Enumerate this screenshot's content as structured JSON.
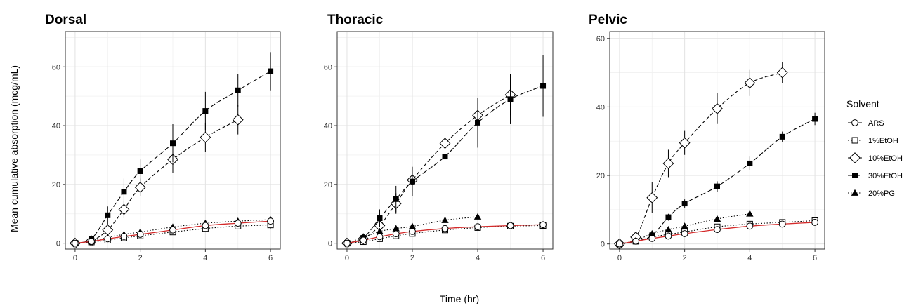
{
  "chart_data": {
    "type": "line",
    "ylabel": "Mean cumulative absorption (mcg/mL)",
    "xlabel": "Time (hr)",
    "grid": true,
    "legend": {
      "title": "Solvent",
      "placement": "right",
      "entries": [
        {
          "name": "ARS",
          "marker": "open-circle",
          "dash": "solid"
        },
        {
          "name": "1%EtOH",
          "marker": "open-square",
          "dash": "dotted"
        },
        {
          "name": "10%EtOH",
          "marker": "open-diamond",
          "dash": "dashed"
        },
        {
          "name": "30%EtOH",
          "marker": "filled-square",
          "dash": "longdash"
        },
        {
          "name": "20%PG",
          "marker": "filled-triangle",
          "dash": "dotted"
        }
      ]
    },
    "panels": [
      {
        "title": "Dorsal",
        "xlim": [
          -0.3,
          6.3
        ],
        "ylim": [
          -2,
          72
        ],
        "xticks": [
          0,
          2,
          4,
          6
        ],
        "yticks": [
          0,
          20,
          40,
          60
        ],
        "series": [
          {
            "name": "ARS",
            "x": [
              0,
              0.5,
              1,
              1.5,
              2,
              3,
              4,
              5,
              6
            ],
            "y": [
              0,
              0.6,
              1.5,
              2.3,
              3.0,
              4.5,
              6.0,
              6.8,
              7.5
            ],
            "err": [
              0,
              0,
              0,
              0,
              0,
              0,
              0,
              0,
              0
            ]
          },
          {
            "name": "1%EtOH",
            "x": [
              0,
              0.5,
              1,
              1.5,
              2,
              3,
              4,
              5,
              6
            ],
            "y": [
              0,
              0.4,
              1.0,
              1.8,
              2.5,
              3.8,
              5.0,
              5.8,
              6.2
            ],
            "err": [
              0.3,
              0.3,
              0.5,
              0.5,
              0.5,
              0.8,
              0.8,
              1.0,
              1.2
            ]
          },
          {
            "name": "10%EtOH",
            "x": [
              0,
              0.5,
              1,
              1.5,
              2,
              3,
              4,
              5
            ],
            "y": [
              0,
              0.8,
              4.5,
              11.5,
              19.0,
              28.5,
              36.0,
              42.0
            ],
            "err": [
              0.3,
              0.5,
              2.0,
              3.0,
              3.0,
              4.5,
              5.0,
              5.0
            ]
          },
          {
            "name": "30%EtOH",
            "x": [
              0,
              0.5,
              1,
              1.5,
              2,
              3,
              4,
              5,
              6
            ],
            "y": [
              0,
              1.5,
              9.5,
              17.5,
              24.5,
              34.0,
              45.0,
              52.0,
              58.5
            ],
            "err": [
              0.3,
              0.8,
              3.0,
              4.5,
              4.0,
              6.5,
              6.5,
              5.5,
              6.5
            ]
          },
          {
            "name": "20%PG",
            "x": [
              0,
              0.5,
              1,
              1.5,
              2,
              3,
              4,
              5,
              6
            ],
            "y": [
              0,
              0.7,
              2.0,
              3.0,
              3.8,
              5.5,
              6.8,
              7.5,
              8.0
            ],
            "err": [
              0.2,
              0.3,
              0.5,
              0.6,
              0.6,
              0.8,
              0.9,
              1.0,
              1.0
            ]
          }
        ]
      },
      {
        "title": "Thoracic",
        "xlim": [
          -0.3,
          6.3
        ],
        "ylim": [
          -2,
          72
        ],
        "xticks": [
          0,
          2,
          4,
          6
        ],
        "yticks": [
          0,
          20,
          40,
          60
        ],
        "series": [
          {
            "name": "ARS",
            "x": [
              0,
              0.5,
              1,
              1.5,
              2,
              3,
              4,
              5,
              6
            ],
            "y": [
              0,
              1.0,
              2.2,
              3.2,
              4.0,
              5.0,
              5.6,
              6.0,
              6.3
            ],
            "err": [
              0,
              0,
              0,
              0,
              0,
              0,
              0,
              0,
              0
            ]
          },
          {
            "name": "1%EtOH",
            "x": [
              0,
              0.5,
              1,
              1.5,
              2,
              3,
              4,
              5,
              6
            ],
            "y": [
              0,
              0.5,
              1.5,
              2.5,
              3.3,
              4.5,
              5.3,
              5.8,
              6.0
            ],
            "err": [
              0.3,
              0.3,
              0.5,
              0.5,
              0.6,
              0.8,
              0.8,
              1.0,
              1.0
            ]
          },
          {
            "name": "10%EtOH",
            "x": [
              0,
              0.5,
              1,
              1.5,
              2,
              3,
              4,
              5
            ],
            "y": [
              0,
              1.5,
              6.0,
              13.5,
              21.5,
              34.0,
              43.5,
              50.5
            ],
            "err": [
              0.3,
              0.8,
              2.5,
              3.5,
              4.0,
              3.0,
              5.0,
              7.0
            ]
          },
          {
            "name": "30%EtOH",
            "x": [
              0,
              0.5,
              1,
              1.5,
              2,
              3,
              4,
              5,
              6
            ],
            "y": [
              0,
              1.8,
              8.5,
              15.0,
              21.0,
              29.5,
              41.0,
              49.0,
              53.5
            ],
            "err": [
              0.3,
              0.8,
              3.0,
              4.5,
              5.0,
              5.5,
              8.5,
              8.5,
              10.5
            ]
          },
          {
            "name": "20%PG",
            "x": [
              0,
              0.5,
              1,
              1.5,
              2,
              3,
              4
            ],
            "y": [
              0,
              2.0,
              4.0,
              5.0,
              5.7,
              7.8,
              9.0
            ],
            "err": [
              0.3,
              0.5,
              0.8,
              0.8,
              0.8,
              0.8,
              0.8
            ]
          }
        ]
      },
      {
        "title": "Pelvic",
        "xlim": [
          -0.3,
          6.3
        ],
        "ylim": [
          -1.5,
          62
        ],
        "xticks": [
          0,
          2,
          4,
          6
        ],
        "yticks": [
          0,
          20,
          40,
          60
        ],
        "series": [
          {
            "name": "ARS",
            "x": [
              0,
              0.5,
              1,
              1.5,
              2,
              3,
              4,
              5,
              6
            ],
            "y": [
              0,
              0.8,
              1.6,
              2.3,
              3.0,
              4.2,
              5.2,
              5.8,
              6.3
            ],
            "err": [
              0,
              0,
              0,
              0,
              0,
              0,
              0,
              0,
              0
            ]
          },
          {
            "name": "1%EtOH",
            "x": [
              0,
              0.5,
              1,
              1.5,
              2,
              3,
              4,
              5,
              6
            ],
            "y": [
              0,
              0.8,
              2.0,
              2.8,
              3.5,
              5.0,
              5.8,
              6.3,
              6.8
            ],
            "err": [
              0.2,
              0.3,
              0.4,
              0.5,
              0.5,
              0.6,
              0.6,
              0.6,
              0.6
            ]
          },
          {
            "name": "10%EtOH",
            "x": [
              0,
              0.5,
              1,
              1.5,
              2,
              3,
              4,
              5
            ],
            "y": [
              0,
              2.0,
              13.5,
              23.5,
              29.5,
              39.5,
              47.0,
              50.0
            ],
            "err": [
              0.3,
              1.0,
              4.5,
              4.0,
              3.5,
              4.5,
              3.8,
              3.0
            ]
          },
          {
            "name": "30%EtOH",
            "x": [
              0,
              0.5,
              1,
              1.5,
              2,
              3,
              4,
              5,
              6
            ],
            "y": [
              0,
              0.7,
              2.5,
              7.8,
              11.8,
              16.8,
              23.5,
              31.3,
              36.5
            ],
            "err": [
              0.2,
              0.3,
              0.6,
              1.0,
              1.2,
              1.5,
              2.0,
              1.5,
              1.8
            ]
          },
          {
            "name": "20%PG",
            "x": [
              0,
              0.5,
              1,
              1.5,
              2,
              3,
              4
            ],
            "y": [
              0,
              1.0,
              3.0,
              4.2,
              5.2,
              7.3,
              8.8
            ],
            "err": [
              0.2,
              0.4,
              0.5,
              0.6,
              0.6,
              0.8,
              0.8
            ]
          }
        ]
      }
    ]
  }
}
